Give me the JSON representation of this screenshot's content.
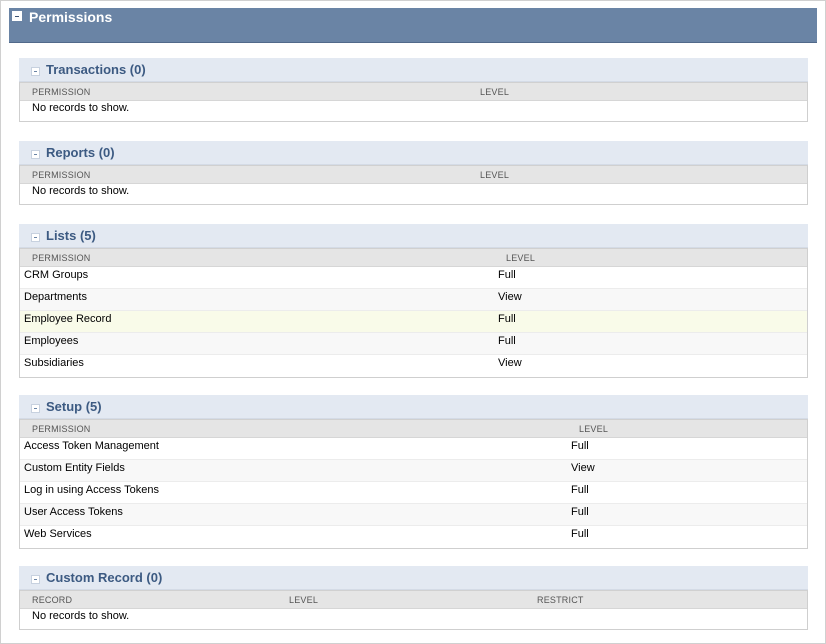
{
  "header": {
    "title": "Permissions"
  },
  "sections": {
    "transactions": {
      "title": "Transactions (0)",
      "columns": [
        "PERMISSION",
        "LEVEL"
      ],
      "empty": "No records to show."
    },
    "reports": {
      "title": "Reports (0)",
      "columns": [
        "PERMISSION",
        "LEVEL"
      ],
      "empty": "No records to show."
    },
    "lists": {
      "title": "Lists (5)",
      "columns": [
        "PERMISSION",
        "LEVEL"
      ],
      "rows": [
        {
          "permission": "CRM Groups",
          "level": "Full"
        },
        {
          "permission": "Departments",
          "level": "View"
        },
        {
          "permission": "Employee Record",
          "level": "Full"
        },
        {
          "permission": "Employees",
          "level": "Full"
        },
        {
          "permission": "Subsidiaries",
          "level": "View"
        }
      ]
    },
    "setup": {
      "title": "Setup (5)",
      "columns": [
        "PERMISSION",
        "LEVEL"
      ],
      "rows": [
        {
          "permission": "Access Token Management",
          "level": "Full"
        },
        {
          "permission": "Custom Entity Fields",
          "level": "View"
        },
        {
          "permission": "Log in using Access Tokens",
          "level": "Full"
        },
        {
          "permission": "User Access Tokens",
          "level": "Full"
        },
        {
          "permission": "Web Services",
          "level": "Full"
        }
      ]
    },
    "custom_record": {
      "title": "Custom Record (0)",
      "columns": [
        "RECORD",
        "LEVEL",
        "RESTRICT"
      ],
      "empty": "No records to show."
    }
  },
  "colors": {
    "header_bg": "#6a84a5",
    "section_header_bg": "#e3e9f2",
    "section_title": "#3c5a82",
    "column_header_bg": "#e5e5e5",
    "highlight_row": "#f9fbe9"
  }
}
